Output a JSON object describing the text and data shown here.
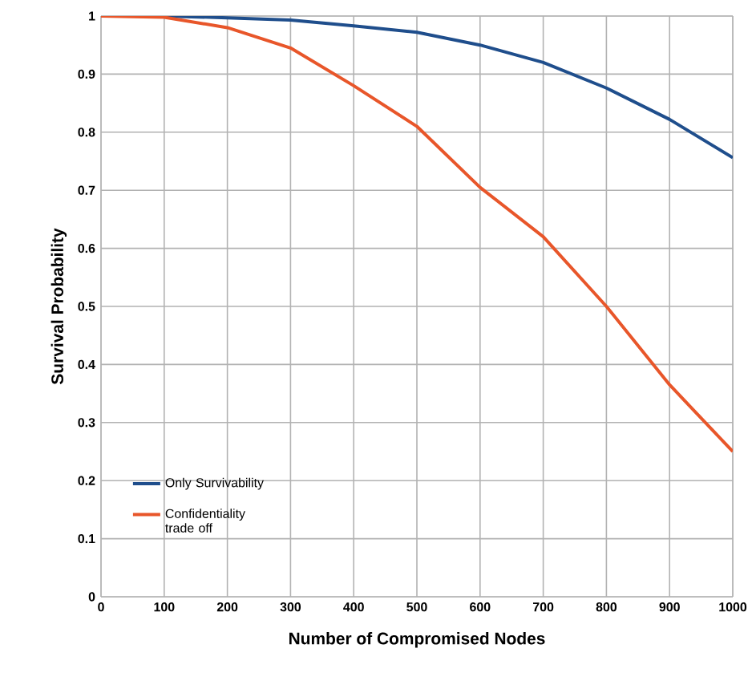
{
  "chart_data": {
    "type": "line",
    "xlabel": "Number of Compromised Nodes",
    "ylabel": "Survival Probability",
    "x": [
      0,
      100,
      200,
      300,
      400,
      500,
      600,
      700,
      800,
      900,
      1000
    ],
    "series": [
      {
        "name": "Only Survivability",
        "color": "#1f4e8c",
        "values": [
          1,
          1,
          0.997,
          0.993,
          0.983,
          0.972,
          0.95,
          0.92,
          0.876,
          0.822,
          0.756
        ]
      },
      {
        "name": "Confidentiality trade off",
        "color": "#e8562a",
        "values": [
          1,
          0.998,
          0.98,
          0.945,
          0.88,
          0.81,
          0.705,
          0.62,
          0.5,
          0.365,
          0.25
        ]
      }
    ],
    "xlim": [
      0,
      1000
    ],
    "ylim": [
      0,
      1
    ],
    "xticks": [
      0,
      100,
      200,
      300,
      400,
      500,
      600,
      700,
      800,
      900,
      1000
    ],
    "yticks": [
      0,
      0.1,
      0.2,
      0.3,
      0.4,
      0.5,
      0.6,
      0.7,
      0.8,
      0.9,
      1
    ],
    "grid": true,
    "legend": "bottom left",
    "marker": "none",
    "line_style": "solid"
  }
}
